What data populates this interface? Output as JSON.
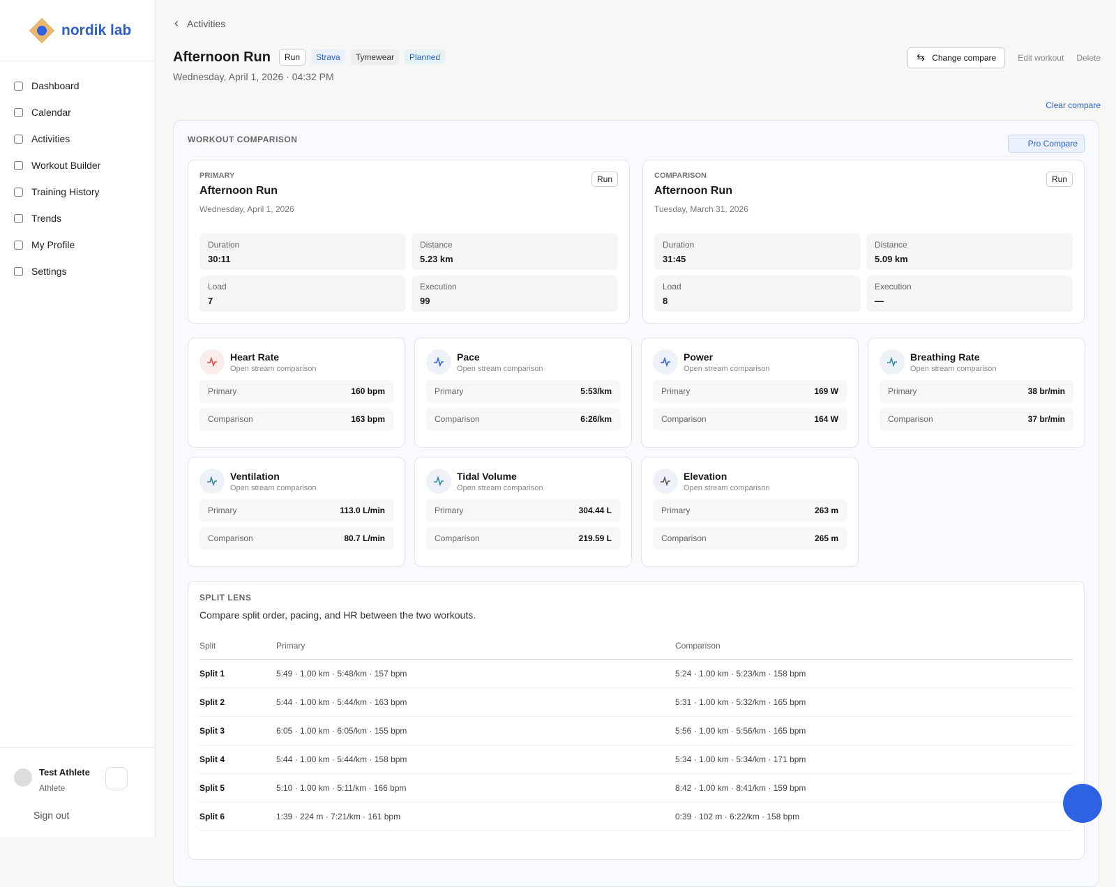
{
  "sidebar": {
    "brand": "nordik lab",
    "nav": [
      "Dashboard",
      "Calendar",
      "Activities",
      "Workout Builder",
      "Training History",
      "Trends",
      "My Profile",
      "Settings"
    ],
    "user": {
      "name": "Test Athlete",
      "role": "Athlete"
    },
    "sign_out": "Sign out"
  },
  "header": {
    "back": "Activities",
    "title": "Afternoon Run",
    "tags": [
      "Run",
      "Strava",
      "Tymewear",
      "Planned"
    ],
    "datetime": "Wednesday, April 1, 2026 · 04:32 PM",
    "actions": [
      "Change compare",
      "Edit workout",
      "Delete"
    ],
    "clear_compare": "Clear compare"
  },
  "comparison": {
    "heading": "WORKOUT COMPARISON",
    "pro_compare": "Pro Compare",
    "workouts": [
      {
        "role": "PRIMARY",
        "sport": "Run",
        "title": "Afternoon Run",
        "date": "Wednesday, April 1, 2026",
        "stats": [
          {
            "label": "Duration",
            "value": "30:11"
          },
          {
            "label": "Distance",
            "value": "5.23 km"
          },
          {
            "label": "Load",
            "value": "7"
          },
          {
            "label": "Execution",
            "value": "99"
          }
        ]
      },
      {
        "role": "COMPARISON",
        "sport": "Run",
        "title": "Afternoon Run",
        "date": "Tuesday, March 31, 2026",
        "stats": [
          {
            "label": "Duration",
            "value": "31:45"
          },
          {
            "label": "Distance",
            "value": "5.09 km"
          },
          {
            "label": "Load",
            "value": "8"
          },
          {
            "label": "Execution",
            "value": "—"
          }
        ]
      }
    ],
    "streams": [
      {
        "name": "Heart Rate",
        "subtitle": "Open stream comparison",
        "rows": [
          {
            "label": "Primary",
            "value": "160 bpm"
          },
          {
            "label": "Comparison",
            "value": "163 bpm"
          }
        ]
      },
      {
        "name": "Pace",
        "subtitle": "Open stream comparison",
        "rows": [
          {
            "label": "Primary",
            "value": "5:53/km"
          },
          {
            "label": "Comparison",
            "value": "6:26/km"
          }
        ]
      },
      {
        "name": "Power",
        "subtitle": "Open stream comparison",
        "rows": [
          {
            "label": "Primary",
            "value": "169 W"
          },
          {
            "label": "Comparison",
            "value": "164 W"
          }
        ]
      },
      {
        "name": "Breathing Rate",
        "subtitle": "Open stream comparison",
        "rows": [
          {
            "label": "Primary",
            "value": "38 br/min"
          },
          {
            "label": "Comparison",
            "value": "37 br/min"
          }
        ]
      },
      {
        "name": "Ventilation",
        "subtitle": "Open stream comparison",
        "rows": [
          {
            "label": "Primary",
            "value": "113.0 L/min"
          },
          {
            "label": "Comparison",
            "value": "80.7 L/min"
          }
        ]
      },
      {
        "name": "Tidal Volume",
        "subtitle": "Open stream comparison",
        "rows": [
          {
            "label": "Primary",
            "value": "304.44 L"
          },
          {
            "label": "Comparison",
            "value": "219.59 L"
          }
        ]
      },
      {
        "name": "Elevation",
        "subtitle": "Open stream comparison",
        "rows": [
          {
            "label": "Primary",
            "value": "263 m"
          },
          {
            "label": "Comparison",
            "value": "265 m"
          }
        ]
      }
    ]
  },
  "splits": {
    "heading": "SPLIT LENS",
    "description": "Compare split order, pacing, and HR between the two workouts.",
    "columns": [
      "Split",
      "Primary",
      "Comparison"
    ],
    "rows": [
      [
        "Split 1",
        "5:49 · 1.00 km · 5:48/km · 157 bpm",
        "5:24 · 1.00 km · 5:23/km · 158 bpm"
      ],
      [
        "Split 2",
        "5:44 · 1.00 km · 5:44/km · 163 bpm",
        "5:31 · 1.00 km · 5:32/km · 165 bpm"
      ],
      [
        "Split 3",
        "6:05 · 1.00 km · 6:05/km · 155 bpm",
        "5:56 · 1.00 km · 5:56/km · 165 bpm"
      ],
      [
        "Split 4",
        "5:44 · 1.00 km · 5:44/km · 158 bpm",
        "5:34 · 1.00 km · 5:34/km · 171 bpm"
      ],
      [
        "Split 5",
        "5:10 · 1.00 km · 5:11/km · 166 bpm",
        "8:42 · 1.00 km · 8:41/km · 159 bpm"
      ],
      [
        "Split 6",
        "1:39 · 224 m · 7:21/km · 161 bpm",
        "0:39 · 102 m · 6:22/km · 158 bpm"
      ]
    ]
  }
}
